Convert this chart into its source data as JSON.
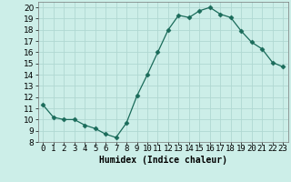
{
  "x": [
    0,
    1,
    2,
    3,
    4,
    5,
    6,
    7,
    8,
    9,
    10,
    11,
    12,
    13,
    14,
    15,
    16,
    17,
    18,
    19,
    20,
    21,
    22,
    23
  ],
  "y": [
    11.3,
    10.2,
    10.0,
    10.0,
    9.5,
    9.2,
    8.7,
    8.4,
    9.7,
    12.1,
    14.0,
    16.0,
    18.0,
    19.3,
    19.1,
    19.7,
    20.0,
    19.4,
    19.1,
    17.9,
    16.9,
    16.3,
    15.1,
    14.7
  ],
  "line_color": "#1a6b5a",
  "marker": "D",
  "marker_size": 2.5,
  "bg_color": "#cceee8",
  "grid_color": "#b0d8d2",
  "xlabel": "Humidex (Indice chaleur)",
  "xlim": [
    -0.5,
    23.5
  ],
  "ylim": [
    8,
    20.5
  ],
  "yticks": [
    8,
    9,
    10,
    11,
    12,
    13,
    14,
    15,
    16,
    17,
    18,
    19,
    20
  ],
  "xticks": [
    0,
    1,
    2,
    3,
    4,
    5,
    6,
    7,
    8,
    9,
    10,
    11,
    12,
    13,
    14,
    15,
    16,
    17,
    18,
    19,
    20,
    21,
    22,
    23
  ],
  "xlabel_fontsize": 7,
  "tick_fontsize": 6.5
}
